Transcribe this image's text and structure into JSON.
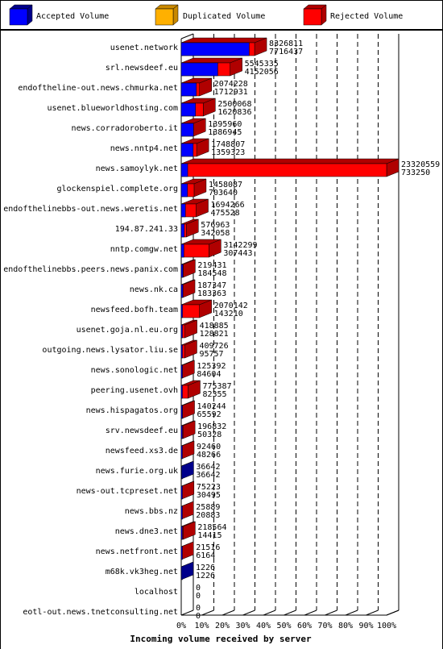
{
  "chart_data": {
    "type": "bar",
    "orientation": "horizontal",
    "stacked": false,
    "xlabel": "Incoming volume received by server",
    "xlim": [
      0,
      100
    ],
    "x_unit": "%",
    "xticks": [
      "0%",
      "10%",
      "20%",
      "30%",
      "40%",
      "50%",
      "60%",
      "70%",
      "80%",
      "90%",
      "100%"
    ],
    "legend_position": "top",
    "grid": true,
    "series": [
      {
        "name": "Accepted Volume",
        "color": "#0000ff",
        "dark": "#00008b"
      },
      {
        "name": "Duplicated Volume",
        "color": "#ffb000",
        "dark": "#c88800"
      },
      {
        "name": "Rejected Volume",
        "color": "#ff0000",
        "dark": "#b00000"
      }
    ],
    "max_value": 23320559,
    "categories": [
      "usenet.network",
      "srl.newsdeef.eu",
      "endoftheline-out.news.chmurka.net",
      "usenet.blueworldhosting.com",
      "news.corradoroberto.it",
      "news.nntp4.net",
      "news.samoylyk.net",
      "glockenspiel.complete.org",
      "endofthelinebbs-out.news.weretis.net",
      "194.87.241.33",
      "nntp.comgw.net",
      "endofthelinebbs.peers.news.panix.com",
      "news.nk.ca",
      "newsfeed.bofh.team",
      "usenet.goja.nl.eu.org",
      "outgoing.news.lysator.liu.se",
      "news.sonologic.net",
      "peering.usenet.ovh",
      "news.hispagatos.org",
      "srv.newsdeef.eu",
      "newsfeed.xs3.de",
      "news.furie.org.uk",
      "news-out.tcpreset.net",
      "news.bbs.nz",
      "news.dne3.net",
      "news.netfront.net",
      "m68k.vk3heg.net",
      "localhost",
      "eotl-out.news.tnetconsulting.net"
    ],
    "total": [
      8326811,
      5545335,
      2074228,
      2500068,
      1395960,
      1748807,
      23320559,
      1458087,
      1694266,
      576963,
      3142299,
      219431,
      187347,
      2070142,
      418885,
      409726,
      125392,
      775387,
      140244,
      196832,
      92460,
      36642,
      75223,
      25889,
      218564,
      21516,
      1226,
      0,
      0
    ],
    "accepted": [
      7716437,
      4152056,
      1712931,
      1620836,
      1386945,
      1359323,
      733250,
      703640,
      475528,
      342058,
      307443,
      184548,
      183363,
      143210,
      128821,
      95757,
      84604,
      82355,
      65592,
      50328,
      48266,
      36642,
      30495,
      20883,
      14415,
      6164,
      1226,
      0,
      0
    ]
  }
}
